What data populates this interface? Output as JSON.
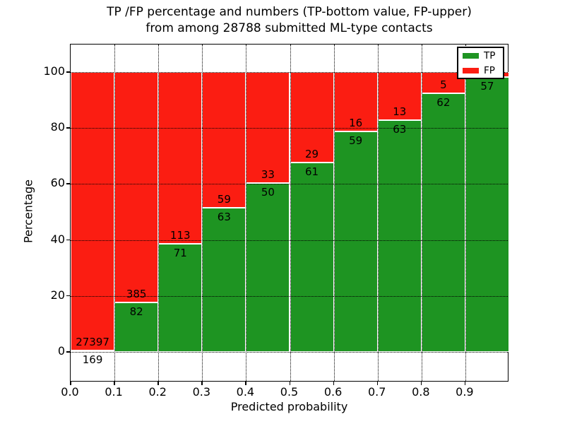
{
  "figure": {
    "title_line1": "TP /FP percentage and numbers (TP-bottom value, FP-upper)",
    "title_line2": "from among 28788 submitted ML-type contacts",
    "xlabel": "Predicted probability",
    "ylabel": "Percentage"
  },
  "legend": {
    "position": "upper right",
    "items": [
      {
        "label": "TP",
        "color": "#1e9422"
      },
      {
        "label": "FP",
        "color": "#fb1d12"
      }
    ]
  },
  "chart_data": {
    "type": "bar",
    "stacked": true,
    "title": "TP /FP percentage and numbers (TP-bottom value, FP-upper) from among 28788 submitted ML-type contacts",
    "xlabel": "Predicted probability",
    "ylabel": "Percentage",
    "total_contacts": 28788,
    "x_bins": [
      "0.0-0.1",
      "0.1-0.2",
      "0.2-0.3",
      "0.3-0.4",
      "0.4-0.5",
      "0.5-0.6",
      "0.6-0.7",
      "0.7-0.8",
      "0.8-0.9",
      "0.9-1.0"
    ],
    "x_tick_labels": [
      "0.0",
      "0.1",
      "0.2",
      "0.3",
      "0.4",
      "0.5",
      "0.6",
      "0.7",
      "0.8",
      "0.9"
    ],
    "y_ticks": [
      0,
      20,
      40,
      60,
      80,
      100
    ],
    "y_tick_labels": [
      "0",
      "20",
      "40",
      "60",
      "80",
      "100"
    ],
    "ylim_pct": [
      -11,
      110
    ],
    "xlim": [
      0.0,
      1.0
    ],
    "grid": "dotted",
    "legend_position": "upper right",
    "series": [
      {
        "name": "TP",
        "color": "#1e9422",
        "counts": [
          169,
          82,
          71,
          63,
          50,
          61,
          59,
          63,
          62,
          57
        ],
        "pct": [
          0.61,
          17.56,
          38.59,
          51.64,
          60.24,
          67.78,
          78.67,
          82.89,
          92.54,
          98.28
        ]
      },
      {
        "name": "FP",
        "color": "#fb1d12",
        "counts": [
          27397,
          385,
          113,
          59,
          33,
          29,
          16,
          13,
          5,
          null
        ],
        "pct": [
          99.39,
          82.44,
          61.41,
          48.36,
          39.76,
          32.22,
          21.33,
          17.11,
          7.46,
          1.72
        ]
      }
    ]
  }
}
